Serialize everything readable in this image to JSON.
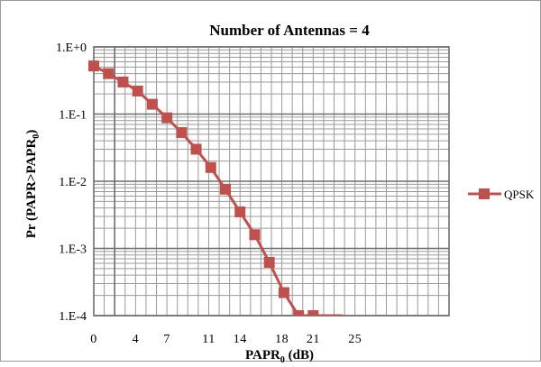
{
  "chart_data": {
    "type": "line",
    "title": "Number of Antennas = 4",
    "xlabel": {
      "main": "PAPR",
      "sub": "0",
      "suffix": " (dB)"
    },
    "ylabel": {
      "main": "Pr (PAPR>PAPR",
      "sub": "0",
      "suffix": ")"
    },
    "y_scale": "log",
    "ylim": [
      0.0001,
      1
    ],
    "xlim": [
      0,
      34
    ],
    "y_tick_labels": [
      "1.E+0",
      "1.E-1",
      "1.E-2",
      "1.E-3",
      "1.E-4"
    ],
    "x_tick_labels": [
      "0",
      "4",
      "7",
      "11",
      "14",
      "18",
      "21",
      "25"
    ],
    "x_tick_values": [
      0,
      4,
      7,
      11,
      14,
      18,
      21,
      25
    ],
    "grid": true,
    "legend_position": "right",
    "series": [
      {
        "name": "QPSK",
        "color": "#c0504d",
        "marker": "square",
        "x": [
          0,
          1.4,
          2.8,
          4.2,
          5.6,
          7.0,
          8.4,
          9.8,
          11.2,
          12.6,
          14.0,
          15.4,
          16.8,
          18.2,
          19.6,
          21.0,
          22.4,
          23.8
        ],
        "y": [
          0.52,
          0.4,
          0.3,
          0.22,
          0.14,
          0.088,
          0.053,
          0.03,
          0.016,
          0.0076,
          0.0035,
          0.0016,
          0.00062,
          0.00022,
          0.0001,
          0.0001,
          0.0001,
          0.0001
        ],
        "markers_shown": 16
      }
    ]
  }
}
